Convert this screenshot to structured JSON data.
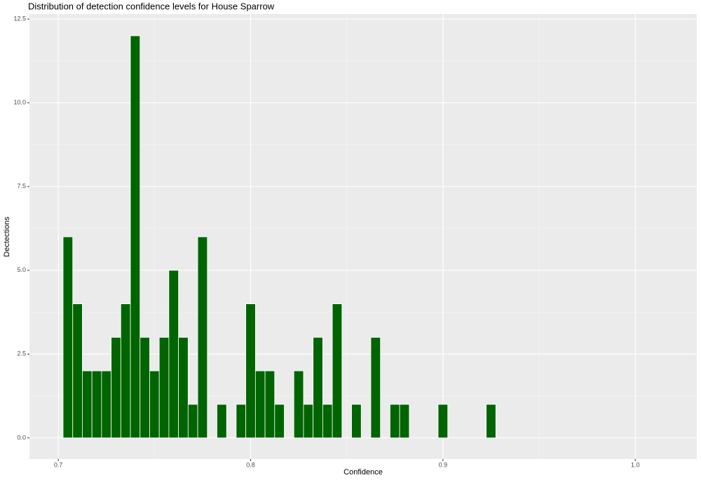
{
  "chart_data": {
    "type": "histogram",
    "title": "Distribution of detection confidence levels for House Sparrow",
    "x_label": "Confidence",
    "y_label": "Dectections",
    "bins": [
      0.7025,
      0.7075,
      0.7125,
      0.7175,
      0.7225,
      0.7275,
      0.7325,
      0.7375,
      0.7425,
      0.7475,
      0.7525,
      0.7575,
      0.7625,
      0.7675,
      0.7725,
      0.7775,
      0.7825,
      0.7875,
      0.7925,
      0.7975,
      0.8025,
      0.8075,
      0.8125,
      0.8175,
      0.8225,
      0.8275,
      0.8325,
      0.8375,
      0.8425,
      0.8475,
      0.8525,
      0.8575,
      0.8625,
      0.8675,
      0.8725,
      0.8775,
      0.8825,
      0.8875,
      0.8925,
      0.8975,
      0.9025,
      0.9075,
      0.9125,
      0.9175,
      0.9225,
      0.9275
    ],
    "values": [
      6,
      4,
      2,
      2,
      2,
      3,
      4,
      12,
      3,
      2,
      3,
      5,
      3,
      1,
      6,
      0,
      1,
      0,
      1,
      4,
      2,
      2,
      1,
      0,
      2,
      1,
      3,
      1,
      4,
      0,
      1,
      0,
      3,
      0,
      1,
      1,
      0,
      0,
      0,
      1,
      0,
      0,
      0,
      0,
      1
    ],
    "color": "#006400",
    "xlim": [
      0.685,
      1.032
    ],
    "ylim": [
      -0.63,
      12.65
    ],
    "xticks": [
      0.7,
      0.8,
      0.9,
      {
        "value": 1,
        "label": "1.0"
      }
    ],
    "yticks": [
      {
        "value": 0,
        "label": "0.0"
      },
      2.5,
      {
        "value": 5,
        "label": "5.0"
      },
      7.5,
      {
        "value": 10,
        "label": "10.0"
      },
      12.5
    ],
    "grid": true
  }
}
